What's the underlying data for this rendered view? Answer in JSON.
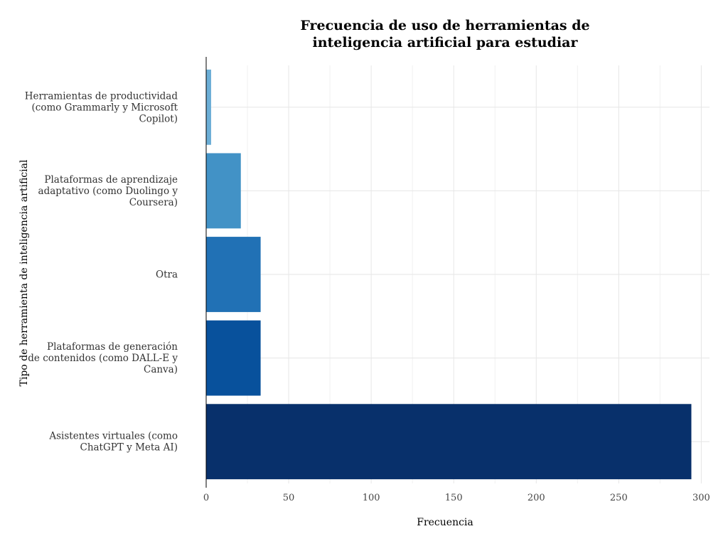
{
  "chart_data": {
    "type": "bar",
    "orientation": "horizontal",
    "title": [
      "Frecuencia de uso de herramientas de",
      "inteligencia artificial para estudiar"
    ],
    "xlabel": "Frecuencia",
    "ylabel": "Tipo de herramienta de inteligencia artificial",
    "xlim": [
      0,
      305
    ],
    "xticks": [
      0,
      50,
      100,
      150,
      200,
      250,
      300
    ],
    "grid": true,
    "categories": [
      {
        "label": [
          "Asistentes virtuales (como",
          "ChatGPT y Meta AI)"
        ],
        "value": 294,
        "color": "#08306b"
      },
      {
        "label": [
          "Plataformas de generación",
          "de contenidos (como DALL-E y",
          "Canva)"
        ],
        "value": 33,
        "color": "#08519c"
      },
      {
        "label": [
          "Otra"
        ],
        "value": 33,
        "color": "#2171b5"
      },
      {
        "label": [
          "Plataformas de aprendizaje",
          "adaptativo (como Duolingo y",
          "Coursera)"
        ],
        "value": 21,
        "color": "#4292c6"
      },
      {
        "label": [
          "Herramientas de productividad",
          "(como Grammarly y Microsoft",
          "Copilot)"
        ],
        "value": 3,
        "color": "#6baed6"
      }
    ]
  }
}
